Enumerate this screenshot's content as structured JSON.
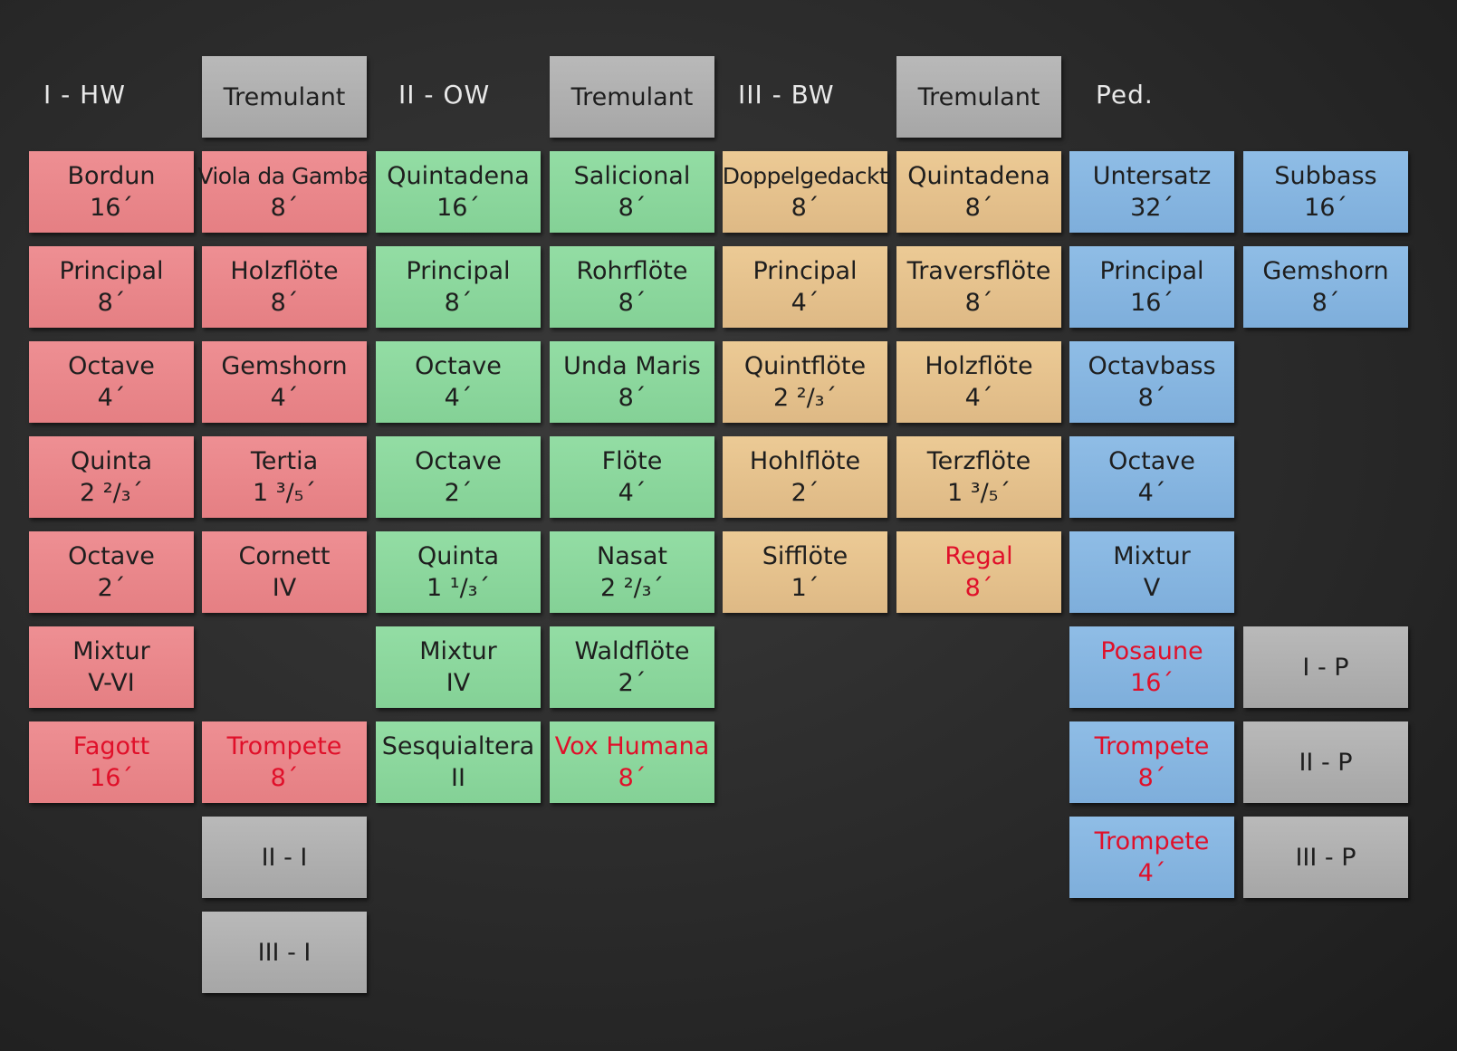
{
  "labels": {
    "hw": "I - HW",
    "ow": "II - OW",
    "bw": "III - BW",
    "ped": "Ped."
  },
  "tremulants": [
    "Tremulant",
    "Tremulant",
    "Tremulant"
  ],
  "hw": [
    {
      "name": "Bordun",
      "pitch": "16´"
    },
    {
      "name": "Principal",
      "pitch": "8´"
    },
    {
      "name": "Octave",
      "pitch": "4´"
    },
    {
      "name": "Quinta",
      "pitch": "2 ²/₃´"
    },
    {
      "name": "Octave",
      "pitch": "2´"
    },
    {
      "name": "Mixtur",
      "pitch": "V-VI"
    },
    {
      "name": "Fagott",
      "pitch": "16´"
    }
  ],
  "hw2": [
    {
      "name": "Viola da Gamba",
      "pitch": "8´"
    },
    {
      "name": "Holzflöte",
      "pitch": "8´"
    },
    {
      "name": "Gemshorn",
      "pitch": "4´"
    },
    {
      "name": "Tertia",
      "pitch": "1 ³/₅´"
    },
    {
      "name": "Cornett",
      "pitch": "IV"
    },
    {
      "name": "Trompete",
      "pitch": "8´"
    }
  ],
  "ow": [
    {
      "name": "Quintadena",
      "pitch": "16´"
    },
    {
      "name": "Principal",
      "pitch": "8´"
    },
    {
      "name": "Octave",
      "pitch": "4´"
    },
    {
      "name": "Octave",
      "pitch": "2´"
    },
    {
      "name": "Quinta",
      "pitch": "1 ¹/₃´"
    },
    {
      "name": "Mixtur",
      "pitch": "IV"
    },
    {
      "name": "Sesquialtera",
      "pitch": "II"
    }
  ],
  "ow2": [
    {
      "name": "Salicional",
      "pitch": "8´"
    },
    {
      "name": "Rohrflöte",
      "pitch": "8´"
    },
    {
      "name": "Unda Maris",
      "pitch": "8´"
    },
    {
      "name": "Flöte",
      "pitch": "4´"
    },
    {
      "name": "Nasat",
      "pitch": "2 ²/₃´"
    },
    {
      "name": "Waldflöte",
      "pitch": "2´"
    },
    {
      "name": "Vox Humana",
      "pitch": "8´"
    }
  ],
  "bw": [
    {
      "name": "Doppelgedackt",
      "pitch": "8´"
    },
    {
      "name": "Principal",
      "pitch": "4´"
    },
    {
      "name": "Quintflöte",
      "pitch": "2 ²/₃´"
    },
    {
      "name": "Hohlflöte",
      "pitch": "2´"
    },
    {
      "name": "Sifflöte",
      "pitch": "1´"
    }
  ],
  "bw2": [
    {
      "name": "Quintadena",
      "pitch": "8´"
    },
    {
      "name": "Traversflöte",
      "pitch": "8´"
    },
    {
      "name": "Holzflöte",
      "pitch": "4´"
    },
    {
      "name": "Terzflöte",
      "pitch": "1 ³/₅´"
    },
    {
      "name": "Regal",
      "pitch": "8´"
    }
  ],
  "ped": [
    {
      "name": "Untersatz",
      "pitch": "32´"
    },
    {
      "name": "Principal",
      "pitch": "16´"
    },
    {
      "name": "Octavbass",
      "pitch": "8´"
    },
    {
      "name": "Octave",
      "pitch": "4´"
    },
    {
      "name": "Mixtur",
      "pitch": "V"
    },
    {
      "name": "Posaune",
      "pitch": "16´"
    },
    {
      "name": "Trompete",
      "pitch": "8´"
    },
    {
      "name": "Trompete",
      "pitch": "4´"
    }
  ],
  "ped2": [
    {
      "name": "Subbass",
      "pitch": "16´"
    },
    {
      "name": "Gemshorn",
      "pitch": "8´"
    }
  ],
  "couplers": {
    "ii_i": "II - I",
    "iii_i": "III - I",
    "i_p": "I - P",
    "ii_p": "II - P",
    "iii_p": "III - P"
  },
  "colors": {
    "hw": "#e88488",
    "ow": "#88d49a",
    "bw": "#e2bd88",
    "ped": "#82b3df",
    "coupler": "#acacac",
    "reed_text": "#e0102a"
  }
}
